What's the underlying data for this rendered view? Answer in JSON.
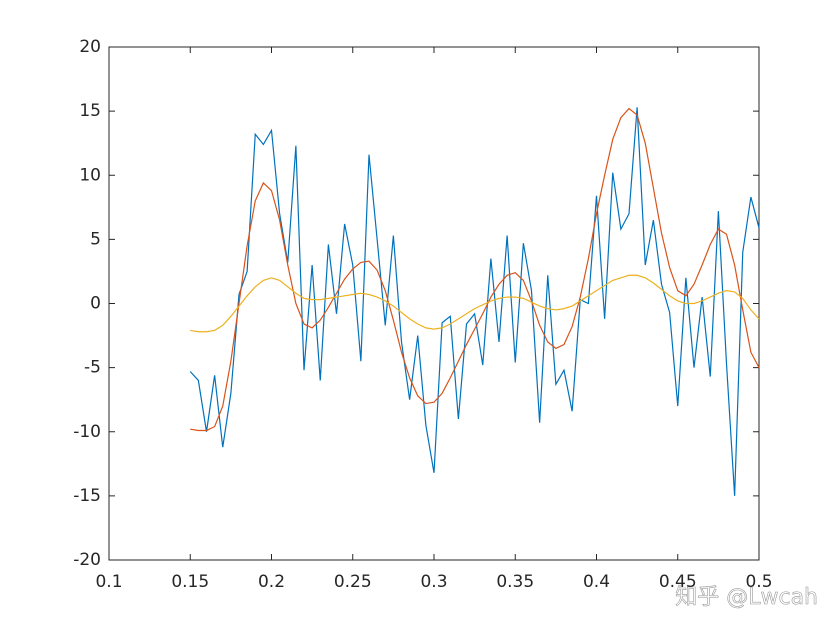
{
  "chart_data": {
    "type": "line",
    "x": [
      0.15,
      0.155,
      0.16,
      0.165,
      0.17,
      0.175,
      0.18,
      0.185,
      0.19,
      0.195,
      0.2,
      0.205,
      0.21,
      0.215,
      0.22,
      0.225,
      0.23,
      0.235,
      0.24,
      0.245,
      0.25,
      0.255,
      0.26,
      0.265,
      0.27,
      0.275,
      0.28,
      0.285,
      0.29,
      0.295,
      0.3,
      0.305,
      0.31,
      0.315,
      0.32,
      0.325,
      0.33,
      0.335,
      0.34,
      0.345,
      0.35,
      0.355,
      0.36,
      0.365,
      0.37,
      0.375,
      0.38,
      0.385,
      0.39,
      0.395,
      0.4,
      0.405,
      0.41,
      0.415,
      0.42,
      0.425,
      0.43,
      0.435,
      0.44,
      0.445,
      0.45,
      0.455,
      0.46,
      0.465,
      0.47,
      0.475,
      0.48,
      0.485,
      0.49,
      0.495,
      0.5
    ],
    "series": [
      {
        "color": "#0072bd",
        "values": [
          -5.3,
          -6,
          -10,
          -5.6,
          -11.2,
          -7,
          0.7,
          2.5,
          13.2,
          12.4,
          13.5,
          7,
          3.2,
          12.3,
          -5.2,
          3,
          -6,
          4.6,
          -0.8,
          6.2,
          3,
          -4.5,
          11.6,
          5,
          -1.7,
          5.3,
          -3,
          -7.5,
          -2.5,
          -9.5,
          -13.2,
          -1.5,
          -1,
          -9,
          -1.6,
          -0.8,
          -4.8,
          3.5,
          -3,
          5.3,
          -4.6,
          4.7,
          1,
          -9.3,
          2.2,
          -6.3,
          -5.2,
          -8.4,
          0.3,
          0,
          8.4,
          -1.2,
          10.2,
          5.8,
          7,
          15.3,
          3,
          6.5,
          1.5,
          -0.7,
          -8,
          2,
          -5,
          0.5,
          -5.7,
          7.2,
          -4.7,
          -15,
          4,
          8.3,
          5.9
        ]
      },
      {
        "color": "#d95319",
        "values": [
          -9.8,
          -9.9,
          -9.9,
          -9.6,
          -8,
          -4.5,
          0,
          4.5,
          8,
          9.4,
          8.8,
          6.5,
          3,
          0,
          -1.6,
          -1.9,
          -1.3,
          -0.3,
          0.8,
          1.9,
          2.7,
          3.2,
          3.3,
          2.6,
          1,
          -1.3,
          -3.8,
          -5.8,
          -7.2,
          -7.8,
          -7.7,
          -7,
          -5.8,
          -4.5,
          -3.2,
          -2,
          -0.8,
          0.5,
          1.5,
          2.2,
          2.4,
          1.8,
          0.2,
          -1.7,
          -3,
          -3.5,
          -3.2,
          -1.8,
          0.5,
          3.5,
          7,
          10,
          12.8,
          14.5,
          15.2,
          14.7,
          12.5,
          9,
          5.5,
          2.8,
          1,
          0.6,
          1.5,
          3,
          4.6,
          5.8,
          5.4,
          3,
          -0.5,
          -3.8,
          -5
        ]
      },
      {
        "color": "#edb120",
        "values": [
          -2.1,
          -2.2,
          -2.2,
          -2.1,
          -1.7,
          -1,
          -0.2,
          0.6,
          1.3,
          1.8,
          2,
          1.8,
          1.3,
          0.8,
          0.4,
          0.3,
          0.3,
          0.4,
          0.5,
          0.6,
          0.7,
          0.8,
          0.7,
          0.5,
          0.2,
          -0.2,
          -0.7,
          -1.2,
          -1.6,
          -1.9,
          -2,
          -1.9,
          -1.6,
          -1.2,
          -0.8,
          -0.4,
          -0.1,
          0.2,
          0.4,
          0.5,
          0.5,
          0.4,
          0.1,
          -0.2,
          -0.4,
          -0.5,
          -0.4,
          -0.2,
          0.2,
          0.6,
          1,
          1.4,
          1.8,
          2,
          2.2,
          2.2,
          2,
          1.6,
          1.1,
          0.6,
          0.2,
          0,
          0,
          0.2,
          0.5,
          0.8,
          1,
          0.9,
          0.4,
          -0.5,
          -1.2
        ]
      }
    ],
    "xlim": [
      0.1,
      0.5
    ],
    "xticks": [
      0.1,
      0.15,
      0.2,
      0.25,
      0.3,
      0.35,
      0.4,
      0.45,
      0.5
    ],
    "ylim": [
      -20,
      20
    ],
    "yticks": [
      -20,
      -15,
      -10,
      -5,
      0,
      5,
      10,
      15,
      20
    ],
    "grid": false
  },
  "watermark": "知乎 @Lwcah"
}
